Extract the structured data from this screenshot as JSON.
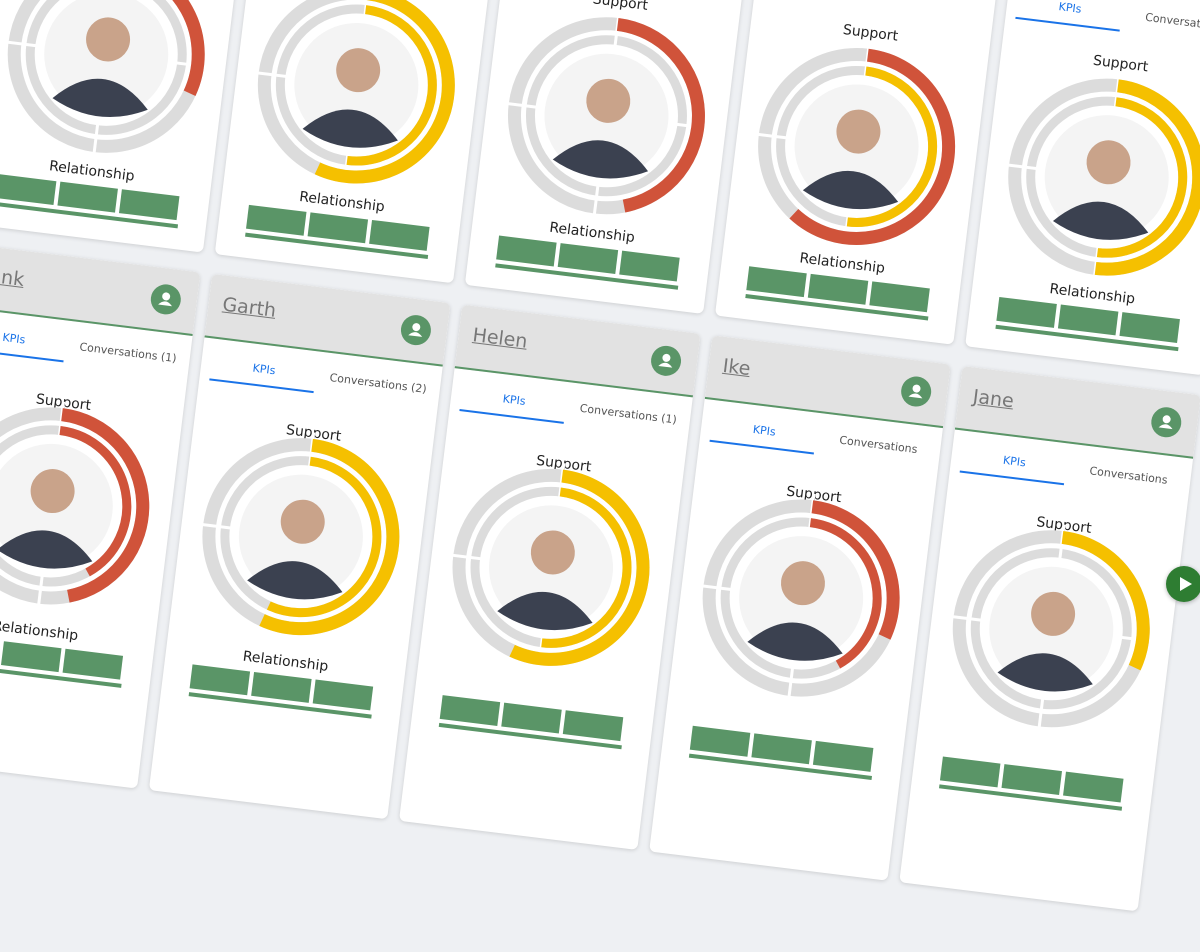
{
  "top_cards": [
    {
      "ring": {
        "color": "#d0533a",
        "outer": 0.3
      },
      "relationship_label": "Relationship"
    },
    {
      "ring": {
        "color": "#f5c000",
        "outer": 0.55,
        "inner": 0.5
      },
      "relationship_label": "Relationship"
    },
    {
      "support_label": "Support",
      "ring": {
        "color": "#d0533a",
        "outer": 0.45
      },
      "relationship_label": "Relationship"
    },
    {
      "support_label": "Support",
      "ring": {
        "color": "#d0533a",
        "outer": 0.6,
        "inner": 0.5,
        "inner_color": "#f5c000"
      },
      "relationship_label": "Relationship"
    },
    {
      "tabs": [
        "KPIs",
        "Conversations"
      ],
      "support_label": "Support",
      "ring": {
        "color": "#f5c000",
        "outer": 0.5,
        "inner": 0.5
      },
      "relationship_label": "Relationship"
    }
  ],
  "bottom_cards": [
    {
      "name": "Frank",
      "tabs": [
        "KPIs",
        "Conversations (1)"
      ],
      "support_label": "Support",
      "ring": {
        "color": "#d0533a",
        "outer": 0.45,
        "inner": 0.4
      },
      "relationship_label": "Relationship"
    },
    {
      "name": "Garth",
      "tabs": [
        "KPIs",
        "Conversations (2)"
      ],
      "support_label": "Support",
      "ring": {
        "color": "#f5c000",
        "outer": 0.55,
        "inner": 0.55
      },
      "relationship_label": "Relationship"
    },
    {
      "name": "Helen",
      "tabs": [
        "KPIs",
        "Conversations (1)"
      ],
      "support_label": "Support",
      "ring": {
        "color": "#f5c000",
        "outer": 0.55,
        "inner": 0.5
      }
    },
    {
      "name": "Ike",
      "tabs": [
        "KPIs",
        "Conversations"
      ],
      "support_label": "Support",
      "ring": {
        "color": "#d0533a",
        "outer": 0.3,
        "inner": 0.4
      }
    },
    {
      "name": "Jane",
      "tabs": [
        "KPIs",
        "Conversations"
      ],
      "support_label": "Support",
      "ring": {
        "color": "#f5c000",
        "outer": 0.3
      }
    }
  ]
}
